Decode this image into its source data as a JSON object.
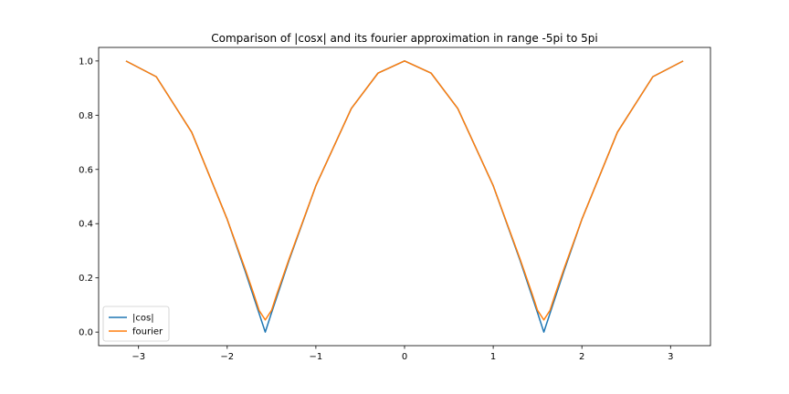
{
  "chart_data": {
    "type": "line",
    "title": "Comparison of |cosx| and its fourier approximation in range -5pi to 5pi",
    "xlabel": "",
    "ylabel": "",
    "xlim": [
      -3.45,
      3.45
    ],
    "ylim": [
      -0.05,
      1.05
    ],
    "xticks": [
      -3,
      -2,
      -1,
      0,
      1,
      2,
      3
    ],
    "xtick_labels": [
      "−3",
      "−2",
      "−1",
      "0",
      "1",
      "2",
      "3"
    ],
    "yticks": [
      0.0,
      0.2,
      0.4,
      0.6,
      0.8,
      1.0
    ],
    "ytick_labels": [
      "0.0",
      "0.2",
      "0.4",
      "0.6",
      "0.8",
      "1.0"
    ],
    "grid": false,
    "legend_position": "bottom-left",
    "series": [
      {
        "name": "|cos|",
        "color": "#1f77b4",
        "x": [
          -3.1416,
          -2.8,
          -2.4,
          -2.0,
          -1.8,
          -1.6,
          -1.5708,
          -1.5,
          -1.3,
          -1.0,
          -0.6,
          -0.3,
          0.0,
          0.3,
          0.6,
          1.0,
          1.3,
          1.5,
          1.5708,
          1.6,
          1.8,
          2.0,
          2.4,
          2.8,
          3.1416
        ],
        "y": [
          1.0,
          0.942,
          0.737,
          0.416,
          0.227,
          0.029,
          0.0,
          0.071,
          0.267,
          0.54,
          0.825,
          0.955,
          1.0,
          0.955,
          0.825,
          0.54,
          0.267,
          0.071,
          0.0,
          0.029,
          0.227,
          0.416,
          0.737,
          0.942,
          1.0
        ]
      },
      {
        "name": "fourier",
        "color": "#ff7f0e",
        "x": [
          -3.1416,
          -2.8,
          -2.4,
          -2.0,
          -1.8,
          -1.7,
          -1.64,
          -1.5708,
          -1.5,
          -1.44,
          -1.3,
          -1.0,
          -0.6,
          -0.3,
          0.0,
          0.3,
          0.6,
          1.0,
          1.3,
          1.44,
          1.5,
          1.5708,
          1.64,
          1.7,
          1.8,
          2.0,
          2.4,
          2.8,
          3.1416
        ],
        "y": [
          1.0,
          0.942,
          0.737,
          0.416,
          0.235,
          0.14,
          0.08,
          0.045,
          0.08,
          0.14,
          0.272,
          0.54,
          0.825,
          0.955,
          1.0,
          0.955,
          0.825,
          0.54,
          0.272,
          0.14,
          0.08,
          0.045,
          0.08,
          0.14,
          0.235,
          0.416,
          0.737,
          0.942,
          1.0
        ]
      }
    ]
  }
}
